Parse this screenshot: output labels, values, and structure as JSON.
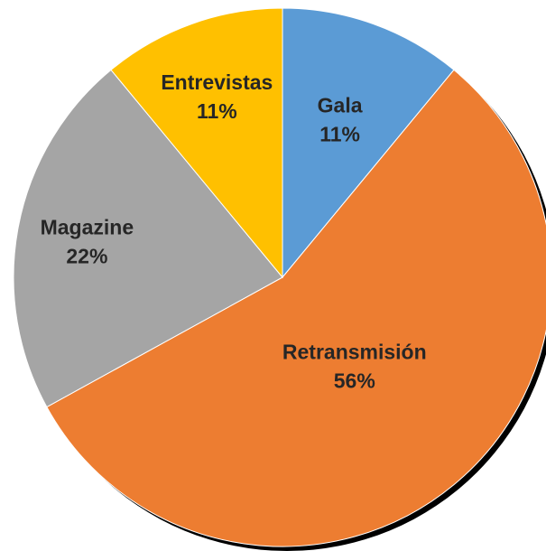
{
  "chart_data": {
    "type": "pie",
    "start_angle_deg": 0,
    "direction": "clockwise",
    "slices": [
      {
        "label": "Gala",
        "value": 11,
        "value_label": "11%",
        "color": "#5b9bd5"
      },
      {
        "label": "Retransmisión",
        "value": 56,
        "value_label": "56%",
        "color": "#ed7d31"
      },
      {
        "label": "Magazine",
        "value": 22,
        "value_label": "22%",
        "color": "#a5a5a5"
      },
      {
        "label": "Entrevistas",
        "value": 11,
        "value_label": "11%",
        "color": "#ffc000"
      }
    ],
    "title": "",
    "legend": "none",
    "shadow": true
  }
}
